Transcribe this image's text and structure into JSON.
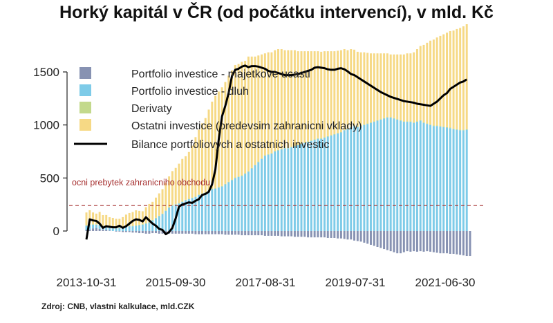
{
  "title": "Horký kapitál v ČR (od počátku intervencí), v mld. Kč",
  "source": "Zdroj: CNB, vlastni kalkulace, mld.CZK",
  "chart_data": {
    "type": "bar",
    "stacked": true,
    "x_ticks": [
      "2013-10-31",
      "2015-09-30",
      "2017-08-31",
      "2019-07-31",
      "2021-06-30"
    ],
    "y_ticks": [
      0,
      500,
      1000,
      1500
    ],
    "ylim": [
      -250,
      1800
    ],
    "grid": false,
    "legend_position": "top-left",
    "annotation": {
      "text": "ocni prebytek zahranicniho obchodu",
      "y": 240,
      "style": "dashed",
      "color": "#a63030"
    },
    "colors": {
      "equity": "#8792b2",
      "debt": "#7ecbe8",
      "derivatives": "#c3d98c",
      "other": "#f6d985",
      "balance": "#000000"
    },
    "series": [
      {
        "name": "Portfolio investice - majetkove ucasti",
        "key": "equity",
        "kind": "bar",
        "values": [
          10,
          15,
          25,
          30,
          20,
          15,
          10,
          5,
          0,
          -5,
          -5,
          -10,
          -10,
          -10,
          -15,
          -15,
          -20,
          -20,
          -25,
          -25,
          -20,
          -20,
          -25,
          -25,
          -25,
          -25,
          -25,
          -25,
          -25,
          -25,
          -25,
          -25,
          -25,
          -30,
          -30,
          -30,
          -30,
          -30,
          -30,
          -30,
          -30,
          -30,
          -35,
          -35,
          -35,
          -35,
          -35,
          -40,
          -40,
          -40,
          -40,
          -40,
          -40,
          -40,
          -45,
          -45,
          -45,
          -45,
          -45,
          -50,
          -50,
          -50,
          -50,
          -55,
          -55,
          -55,
          -55,
          -60,
          -60,
          -60,
          -60,
          -60,
          -60,
          -65,
          -65,
          -65,
          -70,
          -70,
          -75,
          -80,
          -80,
          -90,
          -95,
          -100,
          -110,
          -120,
          -130,
          -140,
          -150,
          -160,
          -170,
          -180,
          -190,
          -200,
          -210,
          -210,
          -200,
          -190,
          -195,
          -190,
          -195,
          -190,
          -195,
          -190,
          -195,
          -200,
          -205,
          -210,
          -210,
          -210,
          -215,
          -215,
          -220,
          -225,
          -230,
          -235,
          -235
        ]
      },
      {
        "name": "Portfolio investice - dluh",
        "key": "debt",
        "kind": "bar",
        "values": [
          40,
          45,
          35,
          30,
          35,
          30,
          30,
          30,
          25,
          25,
          30,
          35,
          40,
          45,
          45,
          50,
          55,
          60,
          70,
          80,
          100,
          120,
          140,
          160,
          190,
          220,
          240,
          250,
          260,
          275,
          290,
          300,
          310,
          320,
          340,
          350,
          360,
          380,
          395,
          400,
          410,
          420,
          440,
          460,
          480,
          500,
          510,
          520,
          540,
          560,
          590,
          620,
          650,
          680,
          710,
          720,
          730,
          750,
          760,
          770,
          780,
          780,
          790,
          800,
          810,
          820,
          830,
          840,
          850,
          860,
          870,
          870,
          880,
          890,
          900,
          910,
          920,
          930,
          950,
          960,
          980,
          990,
          980,
          990,
          1000,
          1010,
          1020,
          1030,
          1040,
          1050,
          1060,
          1070,
          1070,
          1060,
          1050,
          1040,
          1030,
          1030,
          1030,
          1020,
          1030,
          1040,
          1020,
          1010,
          1000,
          990,
          990,
          985,
          980,
          975,
          970,
          960,
          955,
          950,
          950,
          955
        ]
      },
      {
        "name": "Derivaty",
        "key": "derivatives",
        "kind": "bar",
        "values": [
          5,
          6,
          5,
          4,
          5,
          5,
          6,
          5,
          4,
          5,
          5,
          6,
          5,
          5,
          4,
          5,
          5,
          6,
          5,
          5,
          5,
          5,
          5,
          5,
          5,
          5,
          5,
          5,
          5,
          5,
          5,
          5,
          5,
          5,
          5,
          5,
          5,
          5,
          5,
          5,
          5,
          5,
          5,
          5,
          5,
          5,
          5,
          5,
          5,
          5,
          5,
          5,
          5,
          5,
          5,
          5,
          5,
          5,
          5,
          5,
          5,
          5,
          5,
          5,
          5,
          5,
          5,
          5,
          5,
          5,
          5,
          5,
          5,
          5,
          5,
          5,
          5,
          5,
          5,
          5,
          5,
          5,
          5,
          5,
          5,
          5,
          5,
          5,
          5,
          5,
          5,
          5,
          5,
          5,
          5,
          5,
          5,
          5,
          5,
          5,
          5,
          5,
          5,
          5,
          5,
          5,
          5,
          5,
          5,
          5,
          5,
          5,
          5,
          5,
          5,
          5
        ]
      },
      {
        "name": "Ostatni investice (predevsim zahranicni vklady)",
        "key": "other",
        "kind": "bar",
        "values": [
          120,
          130,
          110,
          100,
          120,
          100,
          105,
          90,
          95,
          85,
          80,
          90,
          110,
          120,
          130,
          140,
          130,
          120,
          150,
          170,
          170,
          190,
          210,
          230,
          260,
          290,
          320,
          340,
          370,
          400,
          410,
          440,
          490,
          560,
          610,
          660,
          700,
          760,
          820,
          870,
          900,
          930,
          960,
          1000,
          1030,
          1060,
          1060,
          1070,
          1060,
          1080,
          1050,
          1020,
          1000,
          980,
          960,
          960,
          950,
          950,
          950,
          940,
          920,
          920,
          910,
          900,
          880,
          870,
          860,
          850,
          840,
          830,
          820,
          815,
          810,
          800,
          790,
          780,
          775,
          770,
          760,
          740,
          730,
          715,
          705,
          690,
          680,
          665,
          650,
          640,
          630,
          620,
          610,
          600,
          590,
          600,
          610,
          620,
          630,
          640,
          640,
          660,
          680,
          700,
          730,
          760,
          790,
          810,
          830,
          850,
          870,
          890,
          910,
          925,
          945,
          960,
          975,
          990
        ]
      },
      {
        "name": "Bilance portfoliovych a ostatnich investic",
        "key": "balance",
        "kind": "line",
        "values": [
          -80,
          110,
          100,
          95,
          70,
          30,
          45,
          40,
          35,
          35,
          50,
          30,
          45,
          70,
          95,
          110,
          105,
          90,
          130,
          100,
          70,
          50,
          20,
          10,
          -30,
          -10,
          30,
          120,
          230,
          250,
          260,
          270,
          265,
          285,
          300,
          340,
          350,
          370,
          440,
          580,
          860,
          1080,
          1180,
          1300,
          1460,
          1520,
          1530,
          1550,
          1560,
          1545,
          1555,
          1555,
          1550,
          1540,
          1530,
          1510,
          1500,
          1500,
          1490,
          1480,
          1470,
          1470,
          1470,
          1475,
          1480,
          1490,
          1500,
          1510,
          1520,
          1540,
          1545,
          1540,
          1535,
          1525,
          1520,
          1520,
          1530,
          1535,
          1525,
          1505,
          1480,
          1470,
          1450,
          1430,
          1410,
          1390,
          1370,
          1350,
          1330,
          1310,
          1295,
          1280,
          1265,
          1255,
          1245,
          1235,
          1225,
          1220,
          1215,
          1210,
          1200,
          1195,
          1190,
          1185,
          1180,
          1200,
          1220,
          1250,
          1280,
          1300,
          1340,
          1360,
          1380,
          1400,
          1410,
          1430
        ]
      }
    ]
  }
}
